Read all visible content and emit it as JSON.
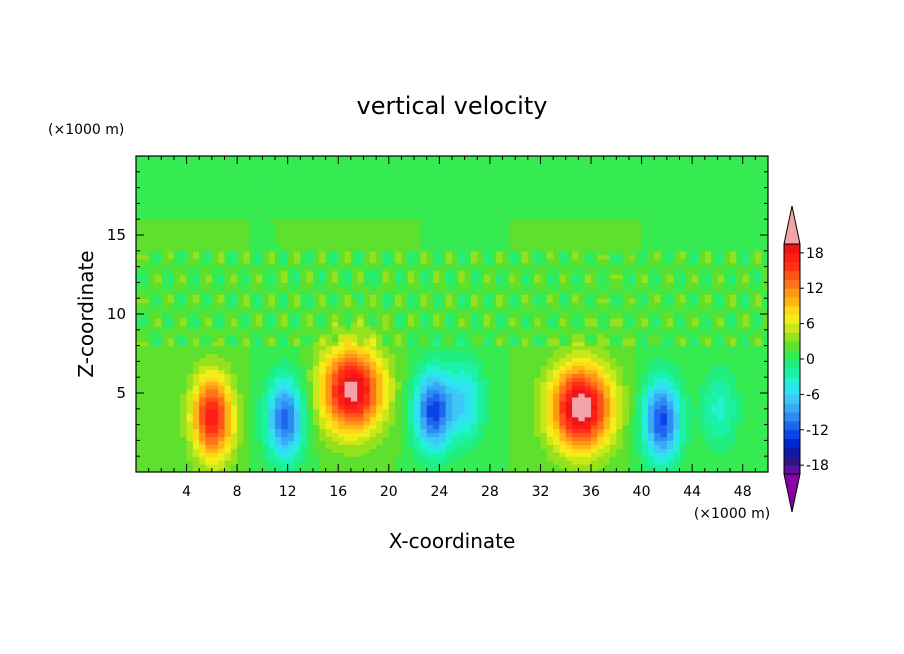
{
  "chart_data": {
    "type": "heatmap",
    "title": "vertical velocity",
    "xlabel": "X-coordinate",
    "ylabel": "Z-coordinate",
    "x_unit": "(×1000 m)",
    "y_unit": "(×1000 m)",
    "xlim": [
      0,
      50
    ],
    "ylim": [
      0,
      20
    ],
    "x_ticks": [
      "4",
      "8",
      "12",
      "16",
      "20",
      "24",
      "28",
      "32",
      "36",
      "40",
      "44",
      "48"
    ],
    "y_ticks": [
      "5",
      "10",
      "15"
    ],
    "colorbar": {
      "tick_labels": [
        "18",
        "12",
        "6",
        "0",
        "-6",
        "-12",
        "-18"
      ],
      "levels": [
        -21,
        -19.5,
        -18,
        -16.5,
        -15,
        -13.5,
        -12,
        -10.5,
        -9,
        -7.5,
        -6,
        -4.5,
        -3,
        -1.5,
        0,
        1.5,
        3,
        4.5,
        6,
        7.5,
        9,
        10.5,
        12,
        13.5,
        15,
        16.5,
        18,
        19.5,
        21
      ],
      "colors": [
        "#8b00a8",
        "#5a11a0",
        "#2a1488",
        "#0d1aa6",
        "#0028d0",
        "#0a44e8",
        "#1e66f0",
        "#2f8bf2",
        "#37aaf5",
        "#3ec8f7",
        "#2fe2f2",
        "#22f2d2",
        "#1cf2a6",
        "#22ee80",
        "#36ea52",
        "#5ee02e",
        "#94e21e",
        "#c8e81a",
        "#f2ee18",
        "#ffd814",
        "#ffb614",
        "#ff9614",
        "#ff7418",
        "#ff5418",
        "#ff3214",
        "#ff1e14",
        "#ee141a",
        "#f2a4a8"
      ],
      "over_color": "#f2a4a8",
      "under_color": "#8b00a8"
    },
    "features": [
      {
        "x": 5.8,
        "z": 3.6,
        "w": 12
      },
      {
        "x": 6.6,
        "z": 3.2,
        "w": 5
      },
      {
        "x": 11.8,
        "z": 3.4,
        "w": -13
      },
      {
        "x": 17.1,
        "z": 5.2,
        "w": 19
      },
      {
        "x": 23.5,
        "z": 3.9,
        "w": -14
      },
      {
        "x": 26.1,
        "z": 4.5,
        "w": -7
      },
      {
        "x": 35.2,
        "z": 4.1,
        "w": 20
      },
      {
        "x": 41.6,
        "z": 3.3,
        "w": -14
      },
      {
        "x": 46.2,
        "z": 4.0,
        "w": -5
      }
    ]
  }
}
